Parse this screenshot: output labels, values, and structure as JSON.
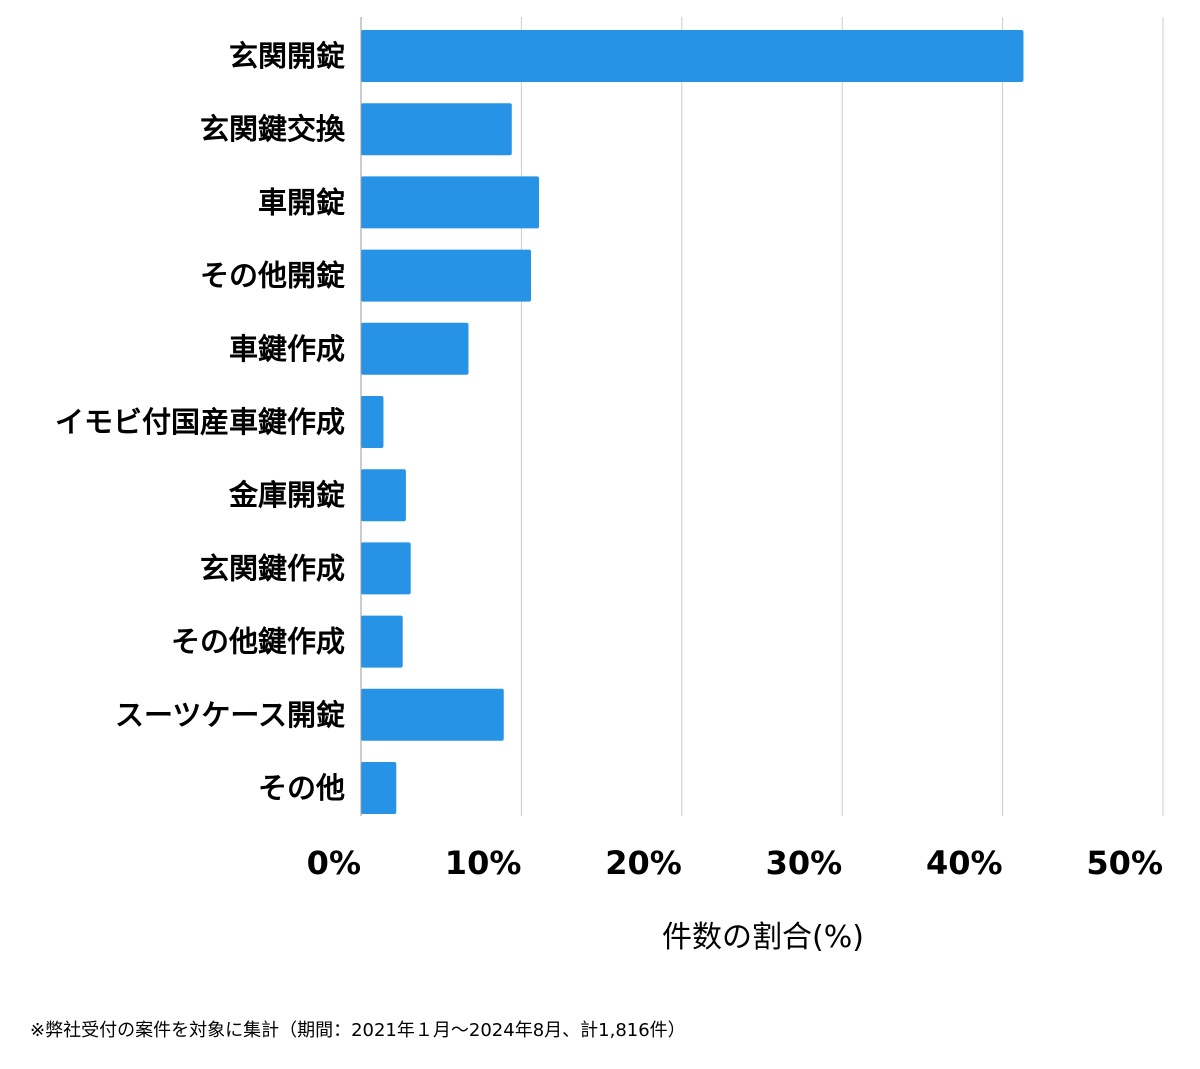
{
  "chart_data": {
    "type": "bar",
    "orientation": "horizontal",
    "categories": [
      "玄関開錠",
      "玄関鍵交換",
      "車開錠",
      "その他開錠",
      "車鍵作成",
      "イモビ付国産車鍵作成",
      "金庫開錠",
      "玄関鍵作成",
      "その他鍵作成",
      "スーツケース開錠",
      "その他"
    ],
    "values": [
      41.3,
      9.4,
      11.1,
      10.6,
      6.7,
      1.4,
      2.8,
      3.1,
      2.6,
      8.9,
      2.2
    ],
    "xlabel": "件数の割合(%)",
    "ylabel": "",
    "xlim": [
      0,
      50
    ],
    "xticks": [
      0,
      10,
      20,
      30,
      40,
      50
    ],
    "xtick_labels": [
      "0%",
      "10%",
      "20%",
      "30%",
      "40%",
      "50%"
    ],
    "grid": "vertical",
    "bar_color": "#2793e6",
    "grid_color": "#cccccc"
  },
  "footnote": "※弊社受付の案件を対象に集計（期間：2021年１月〜2024年8月、計1,816件）"
}
